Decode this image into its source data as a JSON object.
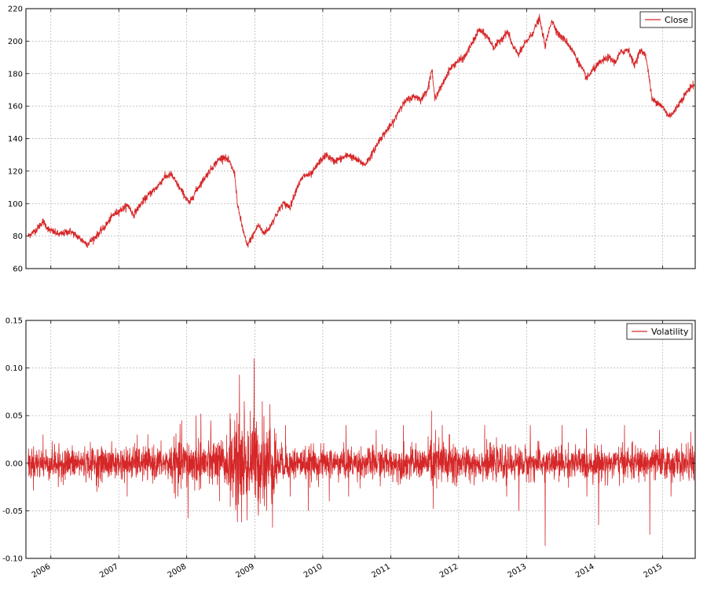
{
  "chart_data": [
    {
      "type": "line",
      "series": [
        {
          "name": "Close",
          "color": "#d62728",
          "points": [
            [
              "2005-09-01",
              80
            ],
            [
              "2005-10-15",
              84
            ],
            [
              "2005-11-20",
              89
            ],
            [
              "2005-12-20",
              84
            ],
            [
              "2006-02-15",
              81
            ],
            [
              "2006-04-15",
              83
            ],
            [
              "2006-06-01",
              79
            ],
            [
              "2006-07-15",
              75
            ],
            [
              "2006-09-01",
              80
            ],
            [
              "2006-10-20",
              86
            ],
            [
              "2006-12-01",
              93
            ],
            [
              "2007-01-10",
              96
            ],
            [
              "2007-02-20",
              99
            ],
            [
              "2007-03-20",
              93
            ],
            [
              "2007-05-01",
              100
            ],
            [
              "2007-06-15",
              106
            ],
            [
              "2007-07-25",
              110
            ],
            [
              "2007-09-01",
              116
            ],
            [
              "2007-10-10",
              118
            ],
            [
              "2007-11-10",
              112
            ],
            [
              "2007-12-15",
              106
            ],
            [
              "2008-01-15",
              100
            ],
            [
              "2008-02-20",
              108
            ],
            [
              "2008-04-01",
              115
            ],
            [
              "2008-05-15",
              122
            ],
            [
              "2008-06-20",
              127
            ],
            [
              "2008-07-20",
              129
            ],
            [
              "2008-08-20",
              125
            ],
            [
              "2008-09-15",
              118
            ],
            [
              "2008-10-01",
              98
            ],
            [
              "2008-10-25",
              86
            ],
            [
              "2008-11-20",
              74
            ],
            [
              "2008-12-20",
              80
            ],
            [
              "2009-01-20",
              87
            ],
            [
              "2009-02-15",
              82
            ],
            [
              "2009-03-15",
              84
            ],
            [
              "2009-04-20",
              92
            ],
            [
              "2009-06-01",
              100
            ],
            [
              "2009-07-10",
              98
            ],
            [
              "2009-08-15",
              110
            ],
            [
              "2009-09-20",
              117
            ],
            [
              "2009-11-01",
              118
            ],
            [
              "2009-12-15",
              126
            ],
            [
              "2010-01-20",
              130
            ],
            [
              "2010-03-01",
              126
            ],
            [
              "2010-04-15",
              128
            ],
            [
              "2010-05-20",
              130
            ],
            [
              "2010-07-01",
              127
            ],
            [
              "2010-08-15",
              124
            ],
            [
              "2010-09-20",
              130
            ],
            [
              "2010-11-01",
              139
            ],
            [
              "2010-12-10",
              145
            ],
            [
              "2011-01-15",
              150
            ],
            [
              "2011-02-20",
              159
            ],
            [
              "2011-04-01",
              164
            ],
            [
              "2011-05-10",
              166
            ],
            [
              "2011-06-15",
              164
            ],
            [
              "2011-07-20",
              171
            ],
            [
              "2011-08-10",
              183
            ],
            [
              "2011-08-25",
              165
            ],
            [
              "2011-10-01",
              172
            ],
            [
              "2011-11-10",
              182
            ],
            [
              "2011-12-20",
              187
            ],
            [
              "2012-02-01",
              190
            ],
            [
              "2012-03-15",
              199
            ],
            [
              "2012-04-20",
              207
            ],
            [
              "2012-06-01",
              203
            ],
            [
              "2012-07-10",
              196
            ],
            [
              "2012-08-15",
              201
            ],
            [
              "2012-09-20",
              206
            ],
            [
              "2012-10-20",
              196
            ],
            [
              "2012-11-20",
              192
            ],
            [
              "2012-12-20",
              198
            ],
            [
              "2013-02-01",
              205
            ],
            [
              "2013-03-10",
              214
            ],
            [
              "2013-04-10",
              197
            ],
            [
              "2013-05-15",
              213
            ],
            [
              "2013-06-20",
              204
            ],
            [
              "2013-08-01",
              200
            ],
            [
              "2013-09-10",
              193
            ],
            [
              "2013-10-15",
              185
            ],
            [
              "2013-11-20",
              177
            ],
            [
              "2013-12-20",
              182
            ],
            [
              "2014-02-01",
              187
            ],
            [
              "2014-03-15",
              190
            ],
            [
              "2014-04-20",
              187
            ],
            [
              "2014-05-20",
              193
            ],
            [
              "2014-07-01",
              195
            ],
            [
              "2014-08-01",
              185
            ],
            [
              "2014-09-01",
              194
            ],
            [
              "2014-10-01",
              192
            ],
            [
              "2014-10-20",
              178
            ],
            [
              "2014-11-05",
              164
            ],
            [
              "2014-12-10",
              162
            ],
            [
              "2015-01-10",
              158
            ],
            [
              "2015-02-01",
              154
            ],
            [
              "2015-03-01",
              156
            ],
            [
              "2015-04-01",
              162
            ],
            [
              "2015-05-01",
              167
            ],
            [
              "2015-06-01",
              172
            ],
            [
              "2015-06-20",
              173
            ]
          ]
        }
      ],
      "x_ticks": [
        "2006",
        "2007",
        "2008",
        "2009",
        "2010",
        "2011",
        "2012",
        "2013",
        "2014",
        "2015"
      ],
      "y_ticks": [
        "60",
        "80",
        "100",
        "120",
        "140",
        "160",
        "180",
        "200",
        "220"
      ],
      "xlim": [
        "2005-08-20",
        "2015-06-25"
      ],
      "ylim": [
        60,
        220
      ],
      "grid": true,
      "legend": "top-right"
    },
    {
      "type": "line",
      "series": [
        {
          "name": "Volatility",
          "color": "#d62728",
          "spikes": [
            [
              "2005-11-20",
              0.03
            ],
            [
              "2006-02-10",
              -0.025
            ],
            [
              "2006-09-05",
              -0.03
            ],
            [
              "2007-02-15",
              -0.035
            ],
            [
              "2007-04-10",
              0.03
            ],
            [
              "2007-11-15",
              -0.035
            ],
            [
              "2007-12-05",
              0.045
            ],
            [
              "2008-01-08",
              -0.058
            ],
            [
              "2008-02-20",
              0.05
            ],
            [
              "2008-03-17",
              0.052
            ],
            [
              "2008-05-10",
              0.035
            ],
            [
              "2008-06-25",
              -0.04
            ],
            [
              "2008-09-15",
              0.045
            ],
            [
              "2008-09-29",
              -0.062
            ],
            [
              "2008-10-10",
              0.093
            ],
            [
              "2008-10-22",
              -0.062
            ],
            [
              "2008-11-05",
              0.065
            ],
            [
              "2008-11-20",
              -0.06
            ],
            [
              "2008-12-08",
              0.055
            ],
            [
              "2008-12-28",
              0.11
            ],
            [
              "2009-01-20",
              -0.055
            ],
            [
              "2009-02-10",
              0.065
            ],
            [
              "2009-03-05",
              -0.05
            ],
            [
              "2009-03-23",
              0.062
            ],
            [
              "2009-06-15",
              0.04
            ],
            [
              "2009-07-10",
              -0.035
            ],
            [
              "2009-10-15",
              -0.05
            ],
            [
              "2010-02-05",
              -0.04
            ],
            [
              "2010-05-06",
              0.04
            ],
            [
              "2010-05-20",
              -0.035
            ],
            [
              "2010-10-15",
              0.035
            ],
            [
              "2011-03-10",
              0.04
            ],
            [
              "2011-08-08",
              0.055
            ],
            [
              "2011-08-18",
              -0.048
            ],
            [
              "2011-10-05",
              0.04
            ],
            [
              "2012-05-20",
              0.04
            ],
            [
              "2012-09-15",
              -0.035
            ],
            [
              "2012-11-20",
              -0.05
            ],
            [
              "2013-01-20",
              0.04
            ],
            [
              "2013-04-10",
              -0.087
            ],
            [
              "2013-07-10",
              0.04
            ],
            [
              "2013-11-20",
              -0.035
            ],
            [
              "2014-01-22",
              -0.065
            ],
            [
              "2014-06-10",
              0.04
            ],
            [
              "2014-10-24",
              -0.075
            ],
            [
              "2014-12-15",
              0.035
            ],
            [
              "2015-02-15",
              -0.035
            ],
            [
              "2015-06-01",
              0.033
            ]
          ]
        }
      ],
      "x_ticks": [
        "2006",
        "2007",
        "2008",
        "2009",
        "2010",
        "2011",
        "2012",
        "2013",
        "2014",
        "2015"
      ],
      "y_ticks": [
        "-0.10",
        "-0.05",
        "0.00",
        "0.05",
        "0.10",
        "0.15"
      ],
      "xlim": [
        "2005-08-20",
        "2015-06-25"
      ],
      "ylim": [
        -0.1,
        0.15
      ],
      "grid": true,
      "legend": "top-right"
    }
  ]
}
